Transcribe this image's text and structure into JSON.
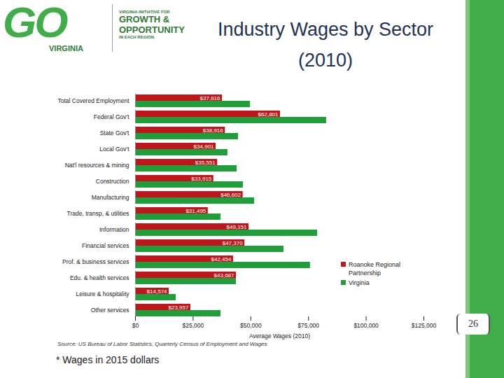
{
  "chart_data": {
    "type": "bar",
    "title": "Industry Wages by Sector (2010)",
    "orientation": "horizontal",
    "categories": [
      "Total Covered Employment",
      "Federal Gov't",
      "State Gov't",
      "Local Gov't",
      "Nat'l resources & mining",
      "Construction",
      "Manufacturing",
      "Trade, transp, & utilities",
      "Information",
      "Financial services",
      "Prof. & business services",
      "Edu. & health services",
      "Leisure & hospitality",
      "Other services"
    ],
    "series": [
      {
        "name": "Roanoke Regional Partnership",
        "color": "#c0161b",
        "values": [
          37616,
          62801,
          38916,
          34901,
          35551,
          33915,
          46602,
          31495,
          49151,
          47370,
          42454,
          43687,
          14574,
          23957
        ],
        "data_labels": true,
        "value_labels": [
          "$37,616",
          "$62,801",
          "$38,916",
          "$34,901",
          "$35,551",
          "$33,915",
          "$46,602",
          "$31,495",
          "$49,151",
          "$47,370",
          "$42,454",
          "$43,687",
          "$14,574",
          "$23,957"
        ]
      },
      {
        "name": "Virginia",
        "color": "#1f9e3a",
        "values": [
          49800,
          82800,
          44600,
          40000,
          44000,
          46700,
          51600,
          37000,
          78900,
          64300,
          75800,
          43700,
          17600,
          37000
        ]
      }
    ],
    "x_label": "Average Wages (2010)",
    "xlim": [
      0,
      125000
    ],
    "xticks": [
      {
        "value": 0,
        "label": "$0"
      },
      {
        "value": 25000,
        "label": "$25,000"
      },
      {
        "value": 50000,
        "label": "$50,000"
      },
      {
        "value": 75000,
        "label": "$75,000"
      },
      {
        "value": 100000,
        "label": "$100,000"
      },
      {
        "value": 125000,
        "label": "$125,000"
      }
    ],
    "grid": false,
    "legend": "right",
    "source": "Source: US Bureau of Labor Statistics, Quarterly Census of Employment and Wages"
  },
  "slide": {
    "logo": {
      "mark": "GO",
      "name": "VIRGINIA",
      "line1": "VIRGINIA INITIATIVE FOR",
      "line2": "GROWTH &",
      "line3": "OPPORTUNITY",
      "line4": "IN EACH REGION"
    },
    "footnote": "* Wages in 2015 dollars",
    "page_number": "26"
  }
}
